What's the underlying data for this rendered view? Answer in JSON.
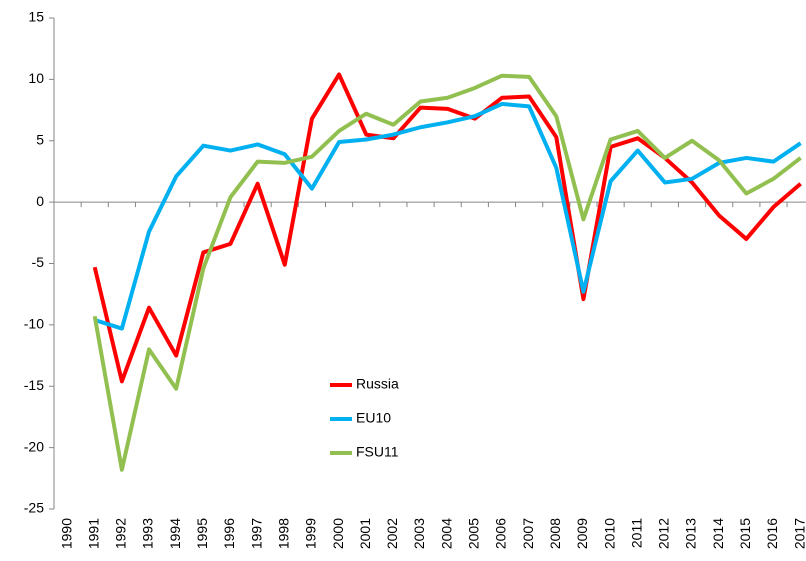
{
  "chart_data": {
    "type": "line",
    "categories": [
      "1990",
      "1991",
      "1992",
      "1993",
      "1994",
      "1995",
      "1996",
      "1997",
      "1998",
      "1999",
      "2000",
      "2001",
      "2002",
      "2003",
      "2004",
      "2005",
      "2006",
      "2007",
      "2008",
      "2009",
      "2010",
      "2011",
      "2012",
      "2013",
      "2014",
      "2015",
      "2016",
      "2017"
    ],
    "series": [
      {
        "name": "Russia",
        "color": "#ff0000",
        "values": [
          null,
          -5.3,
          -14.6,
          -8.6,
          -12.5,
          -4.1,
          -3.4,
          1.5,
          -5.1,
          6.8,
          10.4,
          5.5,
          5.2,
          7.7,
          7.6,
          6.8,
          8.5,
          8.6,
          5.3,
          -7.9,
          4.5,
          5.2,
          3.6,
          1.6,
          -1.1,
          -3.0,
          -0.4,
          1.5
        ]
      },
      {
        "name": "EU10",
        "color": "#00b0f0",
        "values": [
          null,
          -9.6,
          -10.3,
          -2.4,
          2.1,
          4.6,
          4.2,
          4.7,
          3.9,
          1.1,
          4.9,
          5.1,
          5.5,
          6.1,
          6.5,
          7.0,
          8.0,
          7.8,
          2.8,
          -7.3,
          1.7,
          4.2,
          1.6,
          1.9,
          3.2,
          3.6,
          3.3,
          4.8
        ]
      },
      {
        "name": "FSU11",
        "color": "#92c050",
        "values": [
          null,
          -9.3,
          -21.8,
          -12.0,
          -15.2,
          -5.4,
          0.4,
          3.3,
          3.2,
          3.7,
          5.8,
          7.2,
          6.3,
          8.2,
          8.5,
          9.3,
          10.3,
          10.2,
          7.0,
          -1.4,
          5.1,
          5.8,
          3.6,
          5.0,
          3.4,
          0.7,
          1.9,
          3.6
        ]
      }
    ],
    "ylim": [
      -25,
      15
    ],
    "yticks": [
      -25,
      -20,
      -15,
      -10,
      -5,
      0,
      5,
      10,
      15
    ],
    "grid": false,
    "legend": "center"
  }
}
